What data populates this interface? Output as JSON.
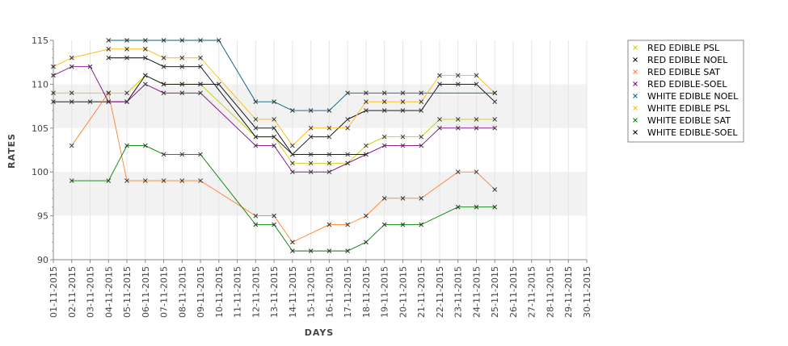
{
  "chart_data": {
    "type": "line",
    "xlabel": "DAYS",
    "ylabel": "RATES",
    "ylim": [
      90,
      115
    ],
    "yticks": [
      90,
      95,
      100,
      105,
      110,
      115
    ],
    "grid": true,
    "legend_position": "right",
    "categories": [
      "01-11-2015",
      "02-11-2015",
      "03-11-2015",
      "04-11-2015",
      "05-11-2015",
      "06-11-2015",
      "07-11-2015",
      "08-11-2015",
      "09-11-2015",
      "10-11-2015",
      "11-11-2015",
      "12-11-2015",
      "13-11-2015",
      "14-11-2015",
      "15-11-2015",
      "16-11-2015",
      "17-11-2015",
      "18-11-2015",
      "19-11-2015",
      "20-11-2015",
      "21-11-2015",
      "22-11-2015",
      "23-11-2015",
      "24-11-2015",
      "25-11-2015",
      "26-11-2015",
      "27-11-2015",
      "28-11-2015",
      "29-11-2015",
      "30-11-2015"
    ],
    "series": [
      {
        "name": "RED EDIBLE  PSL",
        "color": "#cccc00",
        "values": [
          109,
          109,
          null,
          109,
          109,
          111,
          110,
          110,
          110,
          null,
          null,
          104,
          104,
          101,
          101,
          101,
          101,
          103,
          104,
          104,
          104,
          106,
          106,
          106,
          106,
          null,
          null,
          null,
          null,
          null
        ]
      },
      {
        "name": "RED EDIBLE NOEL",
        "color": "#000000",
        "values": [
          108,
          108,
          108,
          108,
          108,
          111,
          110,
          110,
          110,
          110,
          null,
          105,
          105,
          102,
          104,
          104,
          106,
          107,
          107,
          107,
          107,
          110,
          110,
          110,
          108,
          null,
          null,
          null,
          null,
          null
        ]
      },
      {
        "name": "RED EDIBLE SAT",
        "color": "#ff7f2a",
        "values": [
          null,
          103,
          null,
          109,
          99,
          99,
          99,
          99,
          99,
          null,
          null,
          95,
          95,
          92,
          null,
          94,
          94,
          95,
          97,
          97,
          97,
          null,
          100,
          100,
          98,
          null,
          null,
          null,
          null,
          null
        ]
      },
      {
        "name": "RED EDIBLE-SOEL",
        "color": "#800080",
        "values": [
          111,
          112,
          112,
          108,
          108,
          110,
          109,
          109,
          109,
          null,
          null,
          103,
          103,
          100,
          100,
          100,
          101,
          102,
          103,
          103,
          103,
          105,
          105,
          105,
          105,
          null,
          null,
          null,
          null,
          null
        ]
      },
      {
        "name": "WHITE EDIBLE NOEL",
        "color": "#006080",
        "values": [
          null,
          null,
          null,
          115,
          115,
          115,
          115,
          115,
          115,
          115,
          null,
          108,
          108,
          107,
          107,
          107,
          109,
          109,
          109,
          109,
          109,
          null,
          null,
          null,
          109,
          null,
          null,
          null,
          null,
          null
        ]
      },
      {
        "name": "WHITE EDIBLE PSL",
        "color": "#ffbb00",
        "values": [
          112,
          113,
          null,
          114,
          114,
          114,
          113,
          113,
          113,
          null,
          null,
          106,
          106,
          103,
          105,
          105,
          105,
          108,
          108,
          108,
          108,
          111,
          111,
          111,
          109,
          null,
          null,
          null,
          null,
          null
        ]
      },
      {
        "name": "WHITE EDIBLE SAT",
        "color": "#008000",
        "values": [
          null,
          99,
          null,
          99,
          103,
          103,
          102,
          102,
          102,
          null,
          null,
          94,
          94,
          91,
          91,
          91,
          91,
          92,
          94,
          94,
          94,
          null,
          96,
          96,
          96,
          null,
          null,
          null,
          null,
          null
        ]
      },
      {
        "name": "WHITE EDIBLE-SOEL",
        "color": "#000000",
        "values": [
          null,
          null,
          null,
          113,
          113,
          113,
          112,
          112,
          112,
          null,
          null,
          104,
          104,
          102,
          102,
          102,
          102,
          102,
          null,
          null,
          null,
          null,
          null,
          null,
          null,
          null,
          null,
          null,
          null,
          null
        ]
      }
    ]
  }
}
